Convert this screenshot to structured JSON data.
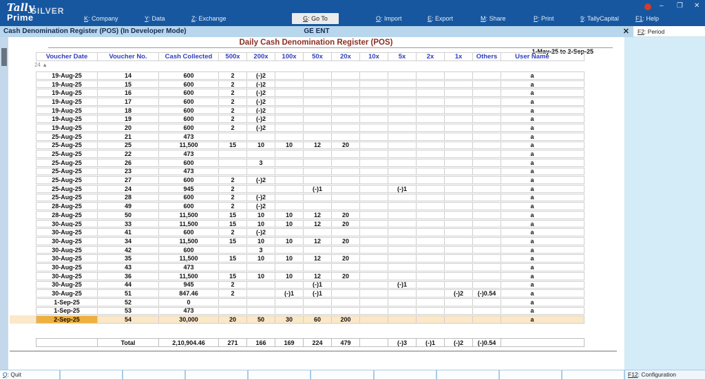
{
  "topbar": {
    "logo": {
      "script": "Tally",
      "product": "Prime",
      "edition": "SILVER"
    },
    "menus": [
      {
        "key": "K",
        "label": "Company"
      },
      {
        "key": "Y",
        "label": "Data"
      },
      {
        "key": "Z",
        "label": "Exchange"
      },
      {
        "key": "G",
        "label": "Go To",
        "highlight": true
      },
      {
        "key": "O",
        "label": "Import"
      },
      {
        "key": "E",
        "label": "Export"
      },
      {
        "key": "M",
        "label": "Share"
      },
      {
        "key": "P",
        "label": "Print"
      },
      {
        "key": "9",
        "label": "TallyCapital"
      },
      {
        "key": "F1",
        "label": "Help"
      }
    ],
    "window_controls": {
      "minimize": "–",
      "maximize": "❐",
      "close": "✕"
    }
  },
  "titlebar": {
    "title": "Cash Denomination Register (POS) (In Developer Mode)",
    "company": "GE ENT",
    "close": "✕"
  },
  "right_panel": {
    "top_item": {
      "key": "F2",
      "label": "Period"
    }
  },
  "report": {
    "title": "Daily Cash Denomination Register (POS)",
    "period": "1-May-25 to 2-Sep-25",
    "scroll_indicator": "24 ▲",
    "columns": [
      "Voucher Date",
      "Voucher No.",
      "Cash Collected",
      "500x",
      "200x",
      "100x",
      "50x",
      "20x",
      "10x",
      "5x",
      "2x",
      "1x",
      "Others",
      "User Name"
    ],
    "rows": [
      [
        "19-Aug-25",
        "14",
        "600",
        "2",
        "(-)2",
        "",
        "",
        "",
        "",
        "",
        "",
        "",
        "",
        "a"
      ],
      [
        "19-Aug-25",
        "15",
        "600",
        "2",
        "(-)2",
        "",
        "",
        "",
        "",
        "",
        "",
        "",
        "",
        "a"
      ],
      [
        "19-Aug-25",
        "16",
        "600",
        "2",
        "(-)2",
        "",
        "",
        "",
        "",
        "",
        "",
        "",
        "",
        "a"
      ],
      [
        "19-Aug-25",
        "17",
        "600",
        "2",
        "(-)2",
        "",
        "",
        "",
        "",
        "",
        "",
        "",
        "",
        "a"
      ],
      [
        "19-Aug-25",
        "18",
        "600",
        "2",
        "(-)2",
        "",
        "",
        "",
        "",
        "",
        "",
        "",
        "",
        "a"
      ],
      [
        "19-Aug-25",
        "19",
        "600",
        "2",
        "(-)2",
        "",
        "",
        "",
        "",
        "",
        "",
        "",
        "",
        "a"
      ],
      [
        "19-Aug-25",
        "20",
        "600",
        "2",
        "(-)2",
        "",
        "",
        "",
        "",
        "",
        "",
        "",
        "",
        "a"
      ],
      [
        "25-Aug-25",
        "21",
        "473",
        "",
        "",
        "",
        "",
        "",
        "",
        "",
        "",
        "",
        "",
        "a"
      ],
      [
        "25-Aug-25",
        "25",
        "11,500",
        "15",
        "10",
        "10",
        "12",
        "20",
        "",
        "",
        "",
        "",
        "",
        "a"
      ],
      [
        "25-Aug-25",
        "22",
        "473",
        "",
        "",
        "",
        "",
        "",
        "",
        "",
        "",
        "",
        "",
        "a"
      ],
      [
        "25-Aug-25",
        "26",
        "600",
        "",
        "3",
        "",
        "",
        "",
        "",
        "",
        "",
        "",
        "",
        "a"
      ],
      [
        "25-Aug-25",
        "23",
        "473",
        "",
        "",
        "",
        "",
        "",
        "",
        "",
        "",
        "",
        "",
        "a"
      ],
      [
        "25-Aug-25",
        "27",
        "600",
        "2",
        "(-)2",
        "",
        "",
        "",
        "",
        "",
        "",
        "",
        "",
        "a"
      ],
      [
        "25-Aug-25",
        "24",
        "945",
        "2",
        "",
        "",
        "(-)1",
        "",
        "",
        "(-)1",
        "",
        "",
        "",
        "a"
      ],
      [
        "25-Aug-25",
        "28",
        "600",
        "2",
        "(-)2",
        "",
        "",
        "",
        "",
        "",
        "",
        "",
        "",
        "a"
      ],
      [
        "28-Aug-25",
        "49",
        "600",
        "2",
        "(-)2",
        "",
        "",
        "",
        "",
        "",
        "",
        "",
        "",
        "a"
      ],
      [
        "28-Aug-25",
        "50",
        "11,500",
        "15",
        "10",
        "10",
        "12",
        "20",
        "",
        "",
        "",
        "",
        "",
        "a"
      ],
      [
        "30-Aug-25",
        "33",
        "11,500",
        "15",
        "10",
        "10",
        "12",
        "20",
        "",
        "",
        "",
        "",
        "",
        "a"
      ],
      [
        "30-Aug-25",
        "41",
        "600",
        "2",
        "(-)2",
        "",
        "",
        "",
        "",
        "",
        "",
        "",
        "",
        "a"
      ],
      [
        "30-Aug-25",
        "34",
        "11,500",
        "15",
        "10",
        "10",
        "12",
        "20",
        "",
        "",
        "",
        "",
        "",
        "a"
      ],
      [
        "30-Aug-25",
        "42",
        "600",
        "",
        "3",
        "",
        "",
        "",
        "",
        "",
        "",
        "",
        "",
        "a"
      ],
      [
        "30-Aug-25",
        "35",
        "11,500",
        "15",
        "10",
        "10",
        "12",
        "20",
        "",
        "",
        "",
        "",
        "",
        "a"
      ],
      [
        "30-Aug-25",
        "43",
        "473",
        "",
        "",
        "",
        "",
        "",
        "",
        "",
        "",
        "",
        "",
        "a"
      ],
      [
        "30-Aug-25",
        "36",
        "11,500",
        "15",
        "10",
        "10",
        "12",
        "20",
        "",
        "",
        "",
        "",
        "",
        "a"
      ],
      [
        "30-Aug-25",
        "44",
        "945",
        "2",
        "",
        "",
        "(-)1",
        "",
        "",
        "(-)1",
        "",
        "",
        "",
        "a"
      ],
      [
        "30-Aug-25",
        "51",
        "847.46",
        "2",
        "",
        "(-)1",
        "(-)1",
        "",
        "",
        "",
        "",
        "(-)2",
        "(-)0.54",
        "a"
      ],
      [
        "1-Sep-25",
        "52",
        "0",
        "",
        "",
        "",
        "",
        "",
        "",
        "",
        "",
        "",
        "",
        "a"
      ],
      [
        "1-Sep-25",
        "53",
        "473",
        "",
        "",
        "",
        "",
        "",
        "",
        "",
        "",
        "",
        "",
        "a"
      ],
      [
        "2-Sep-25",
        "54",
        "30,000",
        "20",
        "50",
        "30",
        "60",
        "200",
        "",
        "",
        "",
        "",
        "",
        "a"
      ]
    ],
    "highlighted_row": 28,
    "total_row": [
      "",
      "Total",
      "2,10,904.46",
      "271",
      "166",
      "169",
      "224",
      "479",
      "",
      "(-)3",
      "(-)1",
      "(-)2",
      "(-)0.54",
      ""
    ]
  },
  "bottombar": {
    "quit": {
      "key": "Q",
      "label": "Quit"
    },
    "empty_slot_count": 9,
    "config": {
      "key": "F12",
      "label": "Configuration"
    }
  },
  "colors": {
    "topbar_blue": "#1657a0",
    "titlebar_blue": "#b8d6ec",
    "header_text_blue": "#2f3dbd",
    "report_title_red": "#8a2f20",
    "highlight_strong": "#f0b03c",
    "highlight_soft": "#fbe8c8",
    "right_panel_blue": "#d4ecf8"
  }
}
